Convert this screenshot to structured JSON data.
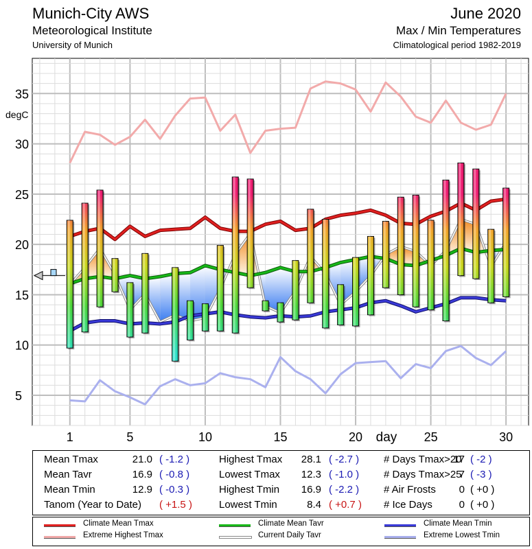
{
  "header": {
    "station": "Munich-City AWS",
    "institute": "Meteorological Institute",
    "university": "University of Munich",
    "month": "June 2020",
    "subtitle": "Max / Min Temperatures",
    "period": "Climatological period 1982-2019"
  },
  "chart_data": {
    "type": "bar",
    "ylabel": "degC",
    "xlabel": "day",
    "ylim": [
      2.0,
      38.5
    ],
    "xlim": [
      -1.5,
      31.5
    ],
    "yticks": [
      5,
      10,
      15,
      20,
      25,
      30,
      35
    ],
    "xticks": [
      1,
      5,
      10,
      15,
      20,
      25,
      30
    ],
    "days": [
      1,
      2,
      3,
      4,
      5,
      6,
      7,
      8,
      9,
      10,
      11,
      12,
      13,
      14,
      15,
      16,
      17,
      18,
      19,
      20,
      21,
      22,
      23,
      24,
      25,
      26,
      27,
      28,
      29,
      30
    ],
    "tmax": [
      22.4,
      24.1,
      25.4,
      18.6,
      16.2,
      19.1,
      12.3,
      17.7,
      14.4,
      14.1,
      19.9,
      26.7,
      26.5,
      14.4,
      14.2,
      18.4,
      23.5,
      22.5,
      16.0,
      18.7,
      20.8,
      22.3,
      24.7,
      24.9,
      22.4,
      26.4,
      28.1,
      27.5,
      21.5,
      25.6
    ],
    "tmin": [
      9.7,
      11.3,
      13.8,
      15.3,
      10.8,
      11.2,
      12.3,
      8.4,
      10.5,
      11.4,
      11.4,
      11.2,
      15.7,
      13.4,
      12.3,
      12.5,
      14.2,
      11.7,
      12.0,
      11.9,
      13.0,
      15.7,
      15.0,
      13.8,
      13.5,
      12.4,
      16.9,
      16.6,
      14.2,
      14.8
    ],
    "tavr": [
      16.0,
      17.7,
      19.6,
      17.0,
      13.5,
      15.1,
      12.3,
      13.0,
      12.4,
      12.7,
      15.6,
      19.0,
      21.1,
      13.9,
      13.2,
      15.4,
      18.8,
      17.1,
      14.0,
      15.3,
      16.9,
      19.0,
      19.8,
      19.3,
      17.9,
      19.4,
      22.5,
      22.0,
      17.8,
      20.2
    ],
    "clim_tmax": [
      20.8,
      21.3,
      21.6,
      20.5,
      21.8,
      20.8,
      21.4,
      21.5,
      21.6,
      22.7,
      21.6,
      21.3,
      21.3,
      22.0,
      22.3,
      21.4,
      21.6,
      22.5,
      22.9,
      23.1,
      23.4,
      22.9,
      22.1,
      22.0,
      22.8,
      23.3,
      24.1,
      23.4,
      24.3,
      24.5
    ],
    "clim_tavr": [
      16.1,
      16.6,
      16.8,
      16.6,
      16.9,
      16.6,
      16.8,
      17.1,
      17.2,
      17.9,
      17.5,
      17.2,
      16.9,
      17.2,
      17.7,
      17.3,
      17.3,
      17.7,
      18.2,
      18.5,
      18.8,
      18.6,
      18.0,
      17.9,
      18.4,
      18.9,
      19.6,
      19.2,
      19.4,
      19.5
    ],
    "clim_tmin": [
      11.4,
      12.2,
      12.4,
      12.4,
      12.1,
      12.2,
      12.1,
      12.3,
      12.9,
      13.1,
      13.3,
      13.0,
      12.8,
      12.7,
      12.9,
      12.8,
      12.9,
      13.3,
      13.5,
      13.7,
      14.2,
      14.4,
      13.9,
      13.3,
      13.7,
      14.1,
      14.7,
      14.7,
      14.5,
      14.4
    ],
    "ext_high_tmax": [
      28.1,
      31.2,
      30.9,
      29.9,
      30.7,
      32.4,
      30.5,
      32.8,
      34.5,
      34.6,
      31.3,
      32.9,
      29.1,
      31.3,
      31.5,
      31.6,
      35.5,
      36.2,
      36.0,
      35.4,
      33.2,
      36.1,
      34.7,
      32.7,
      32.1,
      34.3,
      32.1,
      31.4,
      31.9,
      35.0
    ],
    "ext_low_tmin": [
      4.5,
      4.4,
      6.5,
      5.4,
      4.8,
      4.1,
      5.9,
      6.6,
      6.0,
      6.2,
      7.2,
      6.8,
      6.6,
      5.8,
      8.8,
      7.4,
      6.6,
      5.2,
      7.1,
      8.2,
      8.3,
      8.4,
      6.7,
      8.1,
      7.7,
      9.4,
      9.9,
      8.7,
      8.0,
      9.4
    ],
    "tanom_marker": 16.9,
    "series_names": {
      "clim_tmax": "Climate Mean Tmax",
      "ext_high_tmax": "Extreme Highest Tmax",
      "clim_tavr": "Climate Mean Tavr",
      "tavr": "Current Daily Tavr",
      "clim_tmin": "Climate Mean Tmin",
      "ext_low_tmin": "Extreme Lowest Tmin"
    }
  },
  "stats": {
    "rows": [
      [
        {
          "label": "Mean Tmax",
          "value": "21.0",
          "anom": "( -1.2 )",
          "anom_color": "blue"
        },
        {
          "label": "Highest Tmax",
          "value": "28.1",
          "anom": "( -2.7 )",
          "anom_color": "blue"
        },
        {
          "label": "# Days Tmax>20",
          "value": "17",
          "anom": "( -2 )",
          "anom_color": "blue"
        }
      ],
      [
        {
          "label": "Mean Tavr",
          "value": "16.9",
          "anom": "( -0.8 )",
          "anom_color": "blue"
        },
        {
          "label": "Lowest Tmax",
          "value": "12.3",
          "anom": "( -1.0 )",
          "anom_color": "blue"
        },
        {
          "label": "# Days Tmax>25",
          "value": "7",
          "anom": "( -3 )",
          "anom_color": "blue"
        }
      ],
      [
        {
          "label": "Mean Tmin",
          "value": "12.9",
          "anom": "( -0.3 )",
          "anom_color": "blue"
        },
        {
          "label": "Highest Tmin",
          "value": "16.9",
          "anom": "( -2.2 )",
          "anom_color": "blue"
        },
        {
          "label": "# Air Frosts",
          "value": "0",
          "anom": "( +0 )",
          "anom_color": "black"
        }
      ],
      [
        {
          "label": "Tanom (Year to Date)",
          "value": "",
          "anom": "( +1.5 )",
          "anom_color": "red"
        },
        {
          "label": "Lowest Tmin",
          "value": "8.4",
          "anom": "( +0.7 )",
          "anom_color": "red"
        },
        {
          "label": "# Ice Days",
          "value": "0",
          "anom": "( +0 )",
          "anom_color": "black"
        }
      ]
    ]
  },
  "legend": {
    "items": [
      {
        "label": "Climate Mean Tmax",
        "color": "#e02020"
      },
      {
        "label": "Extreme Highest Tmax",
        "color": "#f2aaaa"
      },
      {
        "label": "Climate Mean Tavr",
        "color": "#18b818"
      },
      {
        "label": "Current Daily Tavr",
        "color": "#a8a8a8"
      },
      {
        "label": "Climate Mean Tmin",
        "color": "#3a3ad8"
      },
      {
        "label": "Extreme Lowest Tmin",
        "color": "#aab0ee"
      }
    ]
  }
}
